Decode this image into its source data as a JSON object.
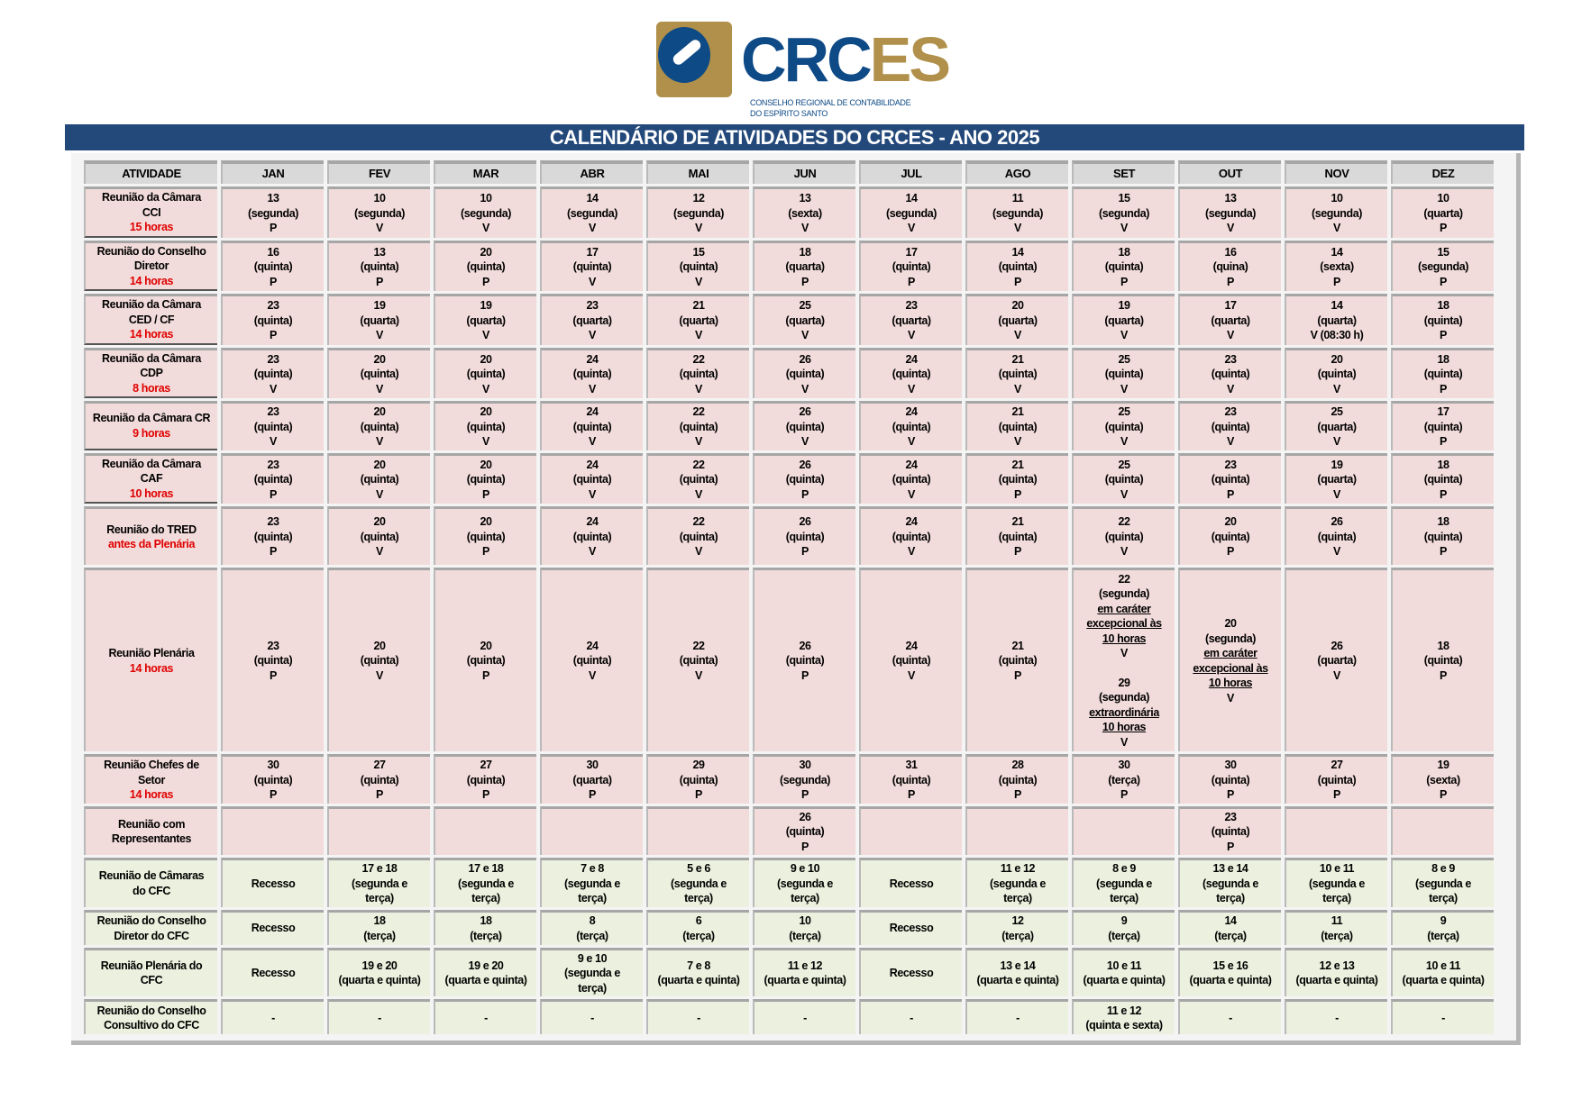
{
  "logo": {
    "name_a": "CRC",
    "name_b": "ES",
    "sub1": "CONSELHO REGIONAL DE CONTABILIDADE",
    "sub2": "DO ESPÍRITO SANTO"
  },
  "title": "CALENDÁRIO DE ATIVIDADES DO CRCES - ANO 2025",
  "colors": {
    "banner": "#23487a",
    "pink": "#f2dcdb",
    "green": "#ebf1de",
    "note": "#e00000"
  },
  "headers": [
    "ATIVIDADE",
    "JAN",
    "FEV",
    "MAR",
    "ABR",
    "MAI",
    "JUN",
    "JUL",
    "AGO",
    "SET",
    "OUT",
    "NOV",
    "DEZ"
  ],
  "rows": [
    {
      "label": [
        "Reunião da Câmara",
        "CCI"
      ],
      "note": "15 horas",
      "cells": [
        [
          "13",
          "(segunda)",
          "P"
        ],
        [
          "10",
          "(segunda)",
          "V"
        ],
        [
          "10",
          "(segunda)",
          "V"
        ],
        [
          "14",
          "(segunda)",
          "V"
        ],
        [
          "12",
          "(segunda)",
          "V"
        ],
        [
          "13",
          "(sexta)",
          "V"
        ],
        [
          "14",
          "(segunda)",
          "V"
        ],
        [
          "11",
          "(segunda)",
          "V"
        ],
        [
          "15",
          "(segunda)",
          "V"
        ],
        [
          "13",
          "(segunda)",
          "V"
        ],
        [
          "10",
          "(segunda)",
          "V"
        ],
        [
          "10",
          "(quarta)",
          "P"
        ]
      ]
    },
    {
      "label": [
        "Reunião do Conselho",
        "Diretor"
      ],
      "note": "14 horas",
      "cells": [
        [
          "16",
          "(quinta)",
          "P"
        ],
        [
          "13",
          "(quinta)",
          "P"
        ],
        [
          "20",
          "(quinta)",
          "P"
        ],
        [
          "17",
          "(quinta)",
          "V"
        ],
        [
          "15",
          "(quinta)",
          "V"
        ],
        [
          "18",
          "(quarta)",
          "P"
        ],
        [
          "17",
          "(quinta)",
          "P"
        ],
        [
          "14",
          "(quinta)",
          "P"
        ],
        [
          "18",
          "(quinta)",
          "P"
        ],
        [
          "16",
          "(quina)",
          "P"
        ],
        [
          "14",
          "(sexta)",
          "P"
        ],
        [
          "15",
          "(segunda)",
          "P"
        ]
      ]
    },
    {
      "label": [
        "Reunião da Câmara",
        "CED / CF"
      ],
      "note": "14 horas",
      "cells": [
        [
          "23",
          "(quinta)",
          "P"
        ],
        [
          "19",
          "(quarta)",
          "V"
        ],
        [
          "19",
          "(quarta)",
          "V"
        ],
        [
          "23",
          "(quarta)",
          "V"
        ],
        [
          "21",
          "(quarta)",
          "V"
        ],
        [
          "25",
          "(quarta)",
          "V"
        ],
        [
          "23",
          "(quarta)",
          "V"
        ],
        [
          "20",
          "(quarta)",
          "V"
        ],
        [
          "19",
          "(quarta)",
          "V"
        ],
        [
          "17",
          "(quarta)",
          "V"
        ],
        [
          "14",
          "(quarta)",
          "V (08:30 h)"
        ],
        [
          "18",
          "(quinta)",
          "P"
        ]
      ]
    },
    {
      "label": [
        "Reunião da Câmara",
        "CDP"
      ],
      "note": "8 horas",
      "cells": [
        [
          "23",
          "(quinta)",
          "V"
        ],
        [
          "20",
          "(quinta)",
          "V"
        ],
        [
          "20",
          "(quinta)",
          "V"
        ],
        [
          "24",
          "(quinta)",
          "V"
        ],
        [
          "22",
          "(quinta)",
          "V"
        ],
        [
          "26",
          "(quinta)",
          "V"
        ],
        [
          "24",
          "(quinta)",
          "V"
        ],
        [
          "21",
          "(quinta)",
          "V"
        ],
        [
          "25",
          "(quinta)",
          "V"
        ],
        [
          "23",
          "(quinta)",
          "V"
        ],
        [
          "20",
          "(quinta)",
          "V"
        ],
        [
          "18",
          "(quinta)",
          "P"
        ]
      ]
    },
    {
      "label": [
        "Reunião da Câmara CR"
      ],
      "note": "9 horas",
      "cells": [
        [
          "23",
          "(quinta)",
          "V"
        ],
        [
          "20",
          "(quinta)",
          "V"
        ],
        [
          "20",
          "(quinta)",
          "V"
        ],
        [
          "24",
          "(quinta)",
          "V"
        ],
        [
          "22",
          "(quinta)",
          "V"
        ],
        [
          "26",
          "(quinta)",
          "V"
        ],
        [
          "24",
          "(quinta)",
          "V"
        ],
        [
          "21",
          "(quinta)",
          "V"
        ],
        [
          "25",
          "(quinta)",
          "V"
        ],
        [
          "23",
          "(quinta)",
          "V"
        ],
        [
          "25",
          "(quarta)",
          "V"
        ],
        [
          "17",
          "(quinta)",
          "P"
        ]
      ]
    },
    {
      "label": [
        "Reunião da Câmara",
        "CAF"
      ],
      "note": "10 horas",
      "cells": [
        [
          "23",
          "(quinta)",
          "P"
        ],
        [
          "20",
          "(quinta)",
          "V"
        ],
        [
          "20",
          "(quinta)",
          "P"
        ],
        [
          "24",
          "(quinta)",
          "V"
        ],
        [
          "22",
          "(quinta)",
          "V"
        ],
        [
          "26",
          "(quinta)",
          "P"
        ],
        [
          "24",
          "(quinta)",
          "V"
        ],
        [
          "21",
          "(quinta)",
          "P"
        ],
        [
          "25",
          "(quinta)",
          "V"
        ],
        [
          "23",
          "(quinta)",
          "P"
        ],
        [
          "19",
          "(quarta)",
          "V"
        ],
        [
          "18",
          "(quinta)",
          "P"
        ]
      ]
    },
    {
      "label": [
        "Reunião do TRED"
      ],
      "note": "antes da Plenária",
      "cells": [
        [
          "23",
          "(quinta)",
          "P"
        ],
        [
          "20",
          "(quinta)",
          "V"
        ],
        [
          "20",
          "(quinta)",
          "P"
        ],
        [
          "24",
          "(quinta)",
          "V"
        ],
        [
          "22",
          "(quinta)",
          "V"
        ],
        [
          "26",
          "(quinta)",
          "P"
        ],
        [
          "24",
          "(quinta)",
          "V"
        ],
        [
          "21",
          "(quinta)",
          "P"
        ],
        [
          "22",
          "(quinta)",
          "V"
        ],
        [
          "20",
          "(quinta)",
          "P"
        ],
        [
          "26",
          "(quinta)",
          "V"
        ],
        [
          "18",
          "(quinta)",
          "P"
        ]
      ]
    },
    {
      "label": [
        "Reunião Plenária"
      ],
      "note": "14 horas",
      "cells": [
        [
          "23",
          "(quinta)",
          "P"
        ],
        [
          "20",
          "(quinta)",
          "V"
        ],
        [
          "20",
          "(quinta)",
          "P"
        ],
        [
          "24",
          "(quinta)",
          "V"
        ],
        [
          "22",
          "(quinta)",
          "V"
        ],
        [
          "26",
          "(quinta)",
          "P"
        ],
        [
          "24",
          "(quinta)",
          "V"
        ],
        [
          "21",
          "(quinta)",
          "P"
        ],
        [
          "22",
          "(segunda)",
          {
            "text": "em caráter",
            "underline": true
          },
          {
            "text": "excepcional às",
            "underline": true
          },
          {
            "text": "10 horas",
            "underline": true
          },
          "V",
          " ",
          "29",
          "(segunda)",
          {
            "text": "extraordinária",
            "underline": true
          },
          {
            "text": "10 horas",
            "underline": true
          },
          "V"
        ],
        [
          "20",
          "(segunda)",
          {
            "text": "em caráter",
            "underline": true
          },
          {
            "text": "excepcional às",
            "underline": true
          },
          {
            "text": "10 horas",
            "underline": true
          },
          "V"
        ],
        [
          "26",
          "(quarta)",
          "V"
        ],
        [
          "18",
          "(quinta)",
          "P"
        ]
      ]
    },
    {
      "label": [
        "Reunião Chefes de",
        "Setor"
      ],
      "note": "14 horas",
      "cells": [
        [
          "30",
          "(quinta)",
          "P"
        ],
        [
          "27",
          "(quinta)",
          "P"
        ],
        [
          "27",
          "(quinta)",
          "P"
        ],
        [
          "30",
          "(quarta)",
          "P"
        ],
        [
          "29",
          "(quinta)",
          "P"
        ],
        [
          "30",
          "(segunda)",
          "P"
        ],
        [
          "31",
          "(quinta)",
          "P"
        ],
        [
          "28",
          "(quinta)",
          "P"
        ],
        [
          "30",
          "(terça)",
          "P"
        ],
        [
          "30",
          "(quinta)",
          "P"
        ],
        [
          "27",
          "(quinta)",
          "P"
        ],
        [
          "19",
          "(sexta)",
          "P"
        ]
      ]
    },
    {
      "label": [
        "Reunião com",
        "Representantes"
      ],
      "note": "",
      "cells": [
        [],
        [],
        [],
        [],
        [],
        [
          "26",
          "(quinta)",
          "P"
        ],
        [],
        [],
        [],
        [
          "23",
          "(quinta)",
          "P"
        ],
        [],
        []
      ]
    },
    {
      "label": [
        "Reunião de Câmaras",
        "do CFC"
      ],
      "note": "",
      "cells": [
        [
          "Recesso"
        ],
        [
          "17 e 18",
          "(segunda e",
          "terça)"
        ],
        [
          "17 e 18",
          "(segunda e",
          "terça)"
        ],
        [
          "7 e 8",
          "(segunda e",
          "terça)"
        ],
        [
          "5 e 6",
          "(segunda e",
          "terça)"
        ],
        [
          "9 e 10",
          "(segunda e",
          "terça)"
        ],
        [
          "Recesso"
        ],
        [
          "11 e 12",
          "(segunda e",
          "terça)"
        ],
        [
          "8 e 9",
          "(segunda e",
          "terça)"
        ],
        [
          "13 e 14",
          "(segunda e",
          "terça)"
        ],
        [
          "10 e 11",
          "(segunda e",
          "terça)"
        ],
        [
          "8 e 9",
          "(segunda e",
          "terça)"
        ]
      ]
    },
    {
      "label": [
        "Reunião do Conselho",
        "Diretor do CFC"
      ],
      "note": "",
      "cells": [
        [
          "Recesso"
        ],
        [
          "18",
          "(terça)"
        ],
        [
          "18",
          "(terça)"
        ],
        [
          "8",
          "(terça)"
        ],
        [
          "6",
          "(terça)"
        ],
        [
          "10",
          "(terça)"
        ],
        [
          "Recesso"
        ],
        [
          "12",
          "(terça)"
        ],
        [
          "9",
          "(terça)"
        ],
        [
          "14",
          "(terça)"
        ],
        [
          "11",
          "(terça)"
        ],
        [
          "9",
          "(terça)"
        ]
      ]
    },
    {
      "label": [
        "Reunião Plenária do",
        "CFC"
      ],
      "note": "",
      "cells": [
        [
          "Recesso"
        ],
        [
          "19 e 20",
          "(quarta e quinta)"
        ],
        [
          "19 e 20",
          "(quarta e quinta)"
        ],
        [
          "9 e 10",
          "(segunda e",
          "terça)"
        ],
        [
          "7 e 8",
          "(quarta e quinta)"
        ],
        [
          "11 e 12",
          "(quarta e quinta)"
        ],
        [
          "Recesso"
        ],
        [
          "13 e 14",
          "(quarta e quinta)"
        ],
        [
          "10 e 11",
          "(quarta e quinta)"
        ],
        [
          "15 e 16",
          "(quarta e quinta)"
        ],
        [
          "12 e 13",
          "(quarta e quinta)"
        ],
        [
          "10 e 11",
          "(quarta e quinta)"
        ]
      ]
    },
    {
      "label": [
        "Reunião do Conselho",
        "Consultivo do CFC"
      ],
      "note": "",
      "cells": [
        [
          "-"
        ],
        [
          "-"
        ],
        [
          "-"
        ],
        [
          "-"
        ],
        [
          "-"
        ],
        [
          "-"
        ],
        [
          "-"
        ],
        [
          "-"
        ],
        [
          "11 e 12",
          "(quinta e sexta)"
        ],
        [
          "-"
        ],
        [
          "-"
        ],
        [
          "-"
        ]
      ]
    }
  ]
}
